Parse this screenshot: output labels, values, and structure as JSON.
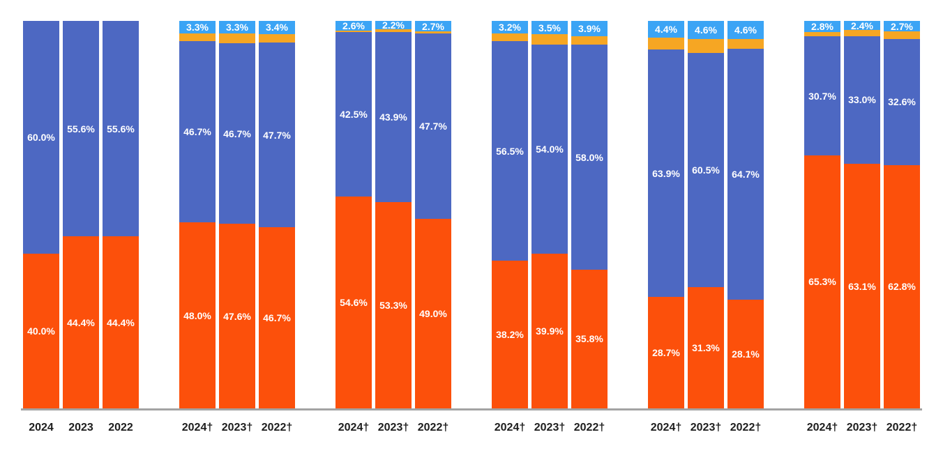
{
  "chart_data": {
    "type": "bar",
    "stacked": true,
    "orientation": "vertical",
    "value_unit": "%",
    "ylim": [
      0,
      100
    ],
    "grid": false,
    "legend": "none",
    "title": "",
    "xlabel": "",
    "ylabel": "",
    "axis_line_color": "#a3a3a3",
    "x_label_color": "#1d1d1d",
    "value_label_color": "#ffffff",
    "series": {
      "sky": {
        "color": "#3ba4f5"
      },
      "amber": {
        "color": "#f6a623"
      },
      "indigo": {
        "color": "#4d68c2"
      },
      "orange": {
        "color": "#fc500b"
      }
    },
    "stack_order_top_to_bottom": [
      "sky",
      "amber",
      "indigo",
      "orange"
    ],
    "groups": [
      {
        "bars": [
          {
            "x": "2024",
            "segments": [
              {
                "series": "indigo",
                "value": 60.0,
                "label": "60.0%"
              },
              {
                "series": "orange",
                "value": 40.0,
                "label": "40.0%"
              }
            ]
          },
          {
            "x": "2023",
            "segments": [
              {
                "series": "indigo",
                "value": 55.6,
                "label": "55.6%"
              },
              {
                "series": "orange",
                "value": 44.4,
                "label": "44.4%"
              }
            ]
          },
          {
            "x": "2022",
            "segments": [
              {
                "series": "indigo",
                "value": 55.6,
                "label": "55.6%"
              },
              {
                "series": "orange",
                "value": 44.4,
                "label": "44.4%"
              }
            ]
          }
        ]
      },
      {
        "bars": [
          {
            "x": "2024†",
            "segments": [
              {
                "series": "sky",
                "value": 3.3,
                "label": "3.3%"
              },
              {
                "series": "amber",
                "value": 2.0
              },
              {
                "series": "indigo",
                "value": 46.7,
                "label": "46.7%"
              },
              {
                "series": "orange",
                "value": 48.0,
                "label": "48.0%"
              }
            ]
          },
          {
            "x": "2023†",
            "segments": [
              {
                "series": "sky",
                "value": 3.3,
                "label": "3.3%"
              },
              {
                "series": "amber",
                "value": 2.4
              },
              {
                "series": "indigo",
                "value": 46.7,
                "label": "46.7%"
              },
              {
                "series": "orange",
                "value": 47.6,
                "label": "47.6%"
              }
            ]
          },
          {
            "x": "2022†",
            "segments": [
              {
                "series": "sky",
                "value": 3.4,
                "label": "3.4%"
              },
              {
                "series": "amber",
                "value": 2.2
              },
              {
                "series": "indigo",
                "value": 47.7,
                "label": "47.7%"
              },
              {
                "series": "orange",
                "value": 46.7,
                "label": "46.7%"
              }
            ]
          }
        ]
      },
      {
        "bars": [
          {
            "x": "2024†",
            "segments": [
              {
                "series": "sky",
                "value": 2.6,
                "label": "2.6%"
              },
              {
                "series": "amber",
                "value": 0.3
              },
              {
                "series": "indigo",
                "value": 42.5,
                "label": "42.5%"
              },
              {
                "series": "orange",
                "value": 54.6,
                "label": "54.6%"
              }
            ]
          },
          {
            "x": "2023†",
            "segments": [
              {
                "series": "sky",
                "value": 2.2,
                "label": "2.2%"
              },
              {
                "series": "amber",
                "value": 0.6
              },
              {
                "series": "indigo",
                "value": 43.9,
                "label": "43.9%"
              },
              {
                "series": "orange",
                "value": 53.3,
                "label": "53.3%"
              }
            ]
          },
          {
            "x": "2022†",
            "segments": [
              {
                "series": "sky",
                "value": 2.7,
                "label": "2.7%"
              },
              {
                "series": "amber",
                "value": 0.6
              },
              {
                "series": "indigo",
                "value": 47.7,
                "label": "47.7%"
              },
              {
                "series": "orange",
                "value": 49.0,
                "label": "49.0%"
              }
            ]
          }
        ]
      },
      {
        "bars": [
          {
            "x": "2024†",
            "segments": [
              {
                "series": "sky",
                "value": 3.2,
                "label": "3.2%"
              },
              {
                "series": "amber",
                "value": 2.1
              },
              {
                "series": "indigo",
                "value": 56.5,
                "label": "56.5%"
              },
              {
                "series": "orange",
                "value": 38.2,
                "label": "38.2%"
              }
            ]
          },
          {
            "x": "2023†",
            "segments": [
              {
                "series": "sky",
                "value": 3.5,
                "label": "3.5%"
              },
              {
                "series": "amber",
                "value": 2.6
              },
              {
                "series": "indigo",
                "value": 54.0,
                "label": "54.0%"
              },
              {
                "series": "orange",
                "value": 39.9,
                "label": "39.9%"
              }
            ]
          },
          {
            "x": "2022†",
            "segments": [
              {
                "series": "sky",
                "value": 3.9,
                "label": "3.9%"
              },
              {
                "series": "amber",
                "value": 2.3
              },
              {
                "series": "indigo",
                "value": 58.0,
                "label": "58.0%"
              },
              {
                "series": "orange",
                "value": 35.8,
                "label": "35.8%"
              }
            ]
          }
        ]
      },
      {
        "bars": [
          {
            "x": "2024†",
            "segments": [
              {
                "series": "sky",
                "value": 4.4,
                "label": "4.4%"
              },
              {
                "series": "amber",
                "value": 3.0
              },
              {
                "series": "indigo",
                "value": 63.9,
                "label": "63.9%"
              },
              {
                "series": "orange",
                "value": 28.7,
                "label": "28.7%"
              }
            ]
          },
          {
            "x": "2023†",
            "segments": [
              {
                "series": "sky",
                "value": 4.6,
                "label": "4.6%"
              },
              {
                "series": "amber",
                "value": 3.6
              },
              {
                "series": "indigo",
                "value": 60.5,
                "label": "60.5%"
              },
              {
                "series": "orange",
                "value": 31.3,
                "label": "31.3%"
              }
            ]
          },
          {
            "x": "2022†",
            "segments": [
              {
                "series": "sky",
                "value": 4.6,
                "label": "4.6%"
              },
              {
                "series": "amber",
                "value": 2.6
              },
              {
                "series": "indigo",
                "value": 64.7,
                "label": "64.7%"
              },
              {
                "series": "orange",
                "value": 28.1,
                "label": "28.1%"
              }
            ]
          }
        ]
      },
      {
        "bars": [
          {
            "x": "2024†",
            "segments": [
              {
                "series": "sky",
                "value": 2.8,
                "label": "2.8%"
              },
              {
                "series": "amber",
                "value": 1.2
              },
              {
                "series": "indigo",
                "value": 30.7,
                "label": "30.7%"
              },
              {
                "series": "orange",
                "value": 65.3,
                "label": "65.3%"
              }
            ]
          },
          {
            "x": "2023†",
            "segments": [
              {
                "series": "sky",
                "value": 2.4,
                "label": "2.4%"
              },
              {
                "series": "amber",
                "value": 1.5
              },
              {
                "series": "indigo",
                "value": 33.0,
                "label": "33.0%"
              },
              {
                "series": "orange",
                "value": 63.1,
                "label": "63.1%"
              }
            ]
          },
          {
            "x": "2022†",
            "segments": [
              {
                "series": "sky",
                "value": 2.7,
                "label": "2.7%"
              },
              {
                "series": "amber",
                "value": 1.9
              },
              {
                "series": "indigo",
                "value": 32.6,
                "label": "32.6%"
              },
              {
                "series": "orange",
                "value": 62.8,
                "label": "62.8%"
              }
            ]
          }
        ]
      }
    ]
  }
}
